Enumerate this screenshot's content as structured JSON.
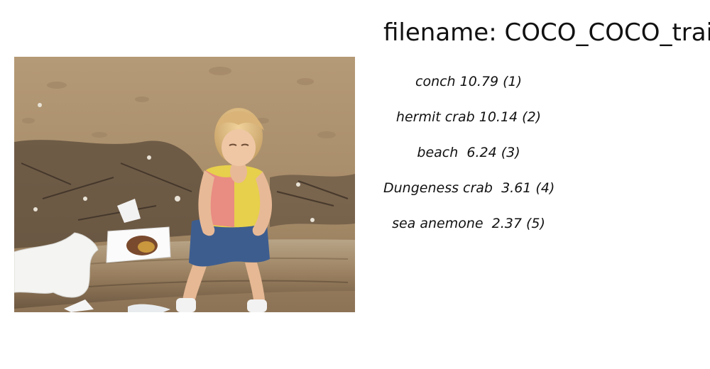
{
  "title": "filename: COCO_COCO_train",
  "photo": {
    "description_icon": "photo-girl-on-beach-log"
  },
  "predictions": [
    {
      "text": "conch 10.79 (1)"
    },
    {
      "text": "hermit crab 10.14 (2)"
    },
    {
      "text": "beach  6.24 (3)"
    },
    {
      "text": "Dungeness crab  3.61 (4)"
    },
    {
      "text": "sea anemone  2.37 (5)"
    }
  ]
}
